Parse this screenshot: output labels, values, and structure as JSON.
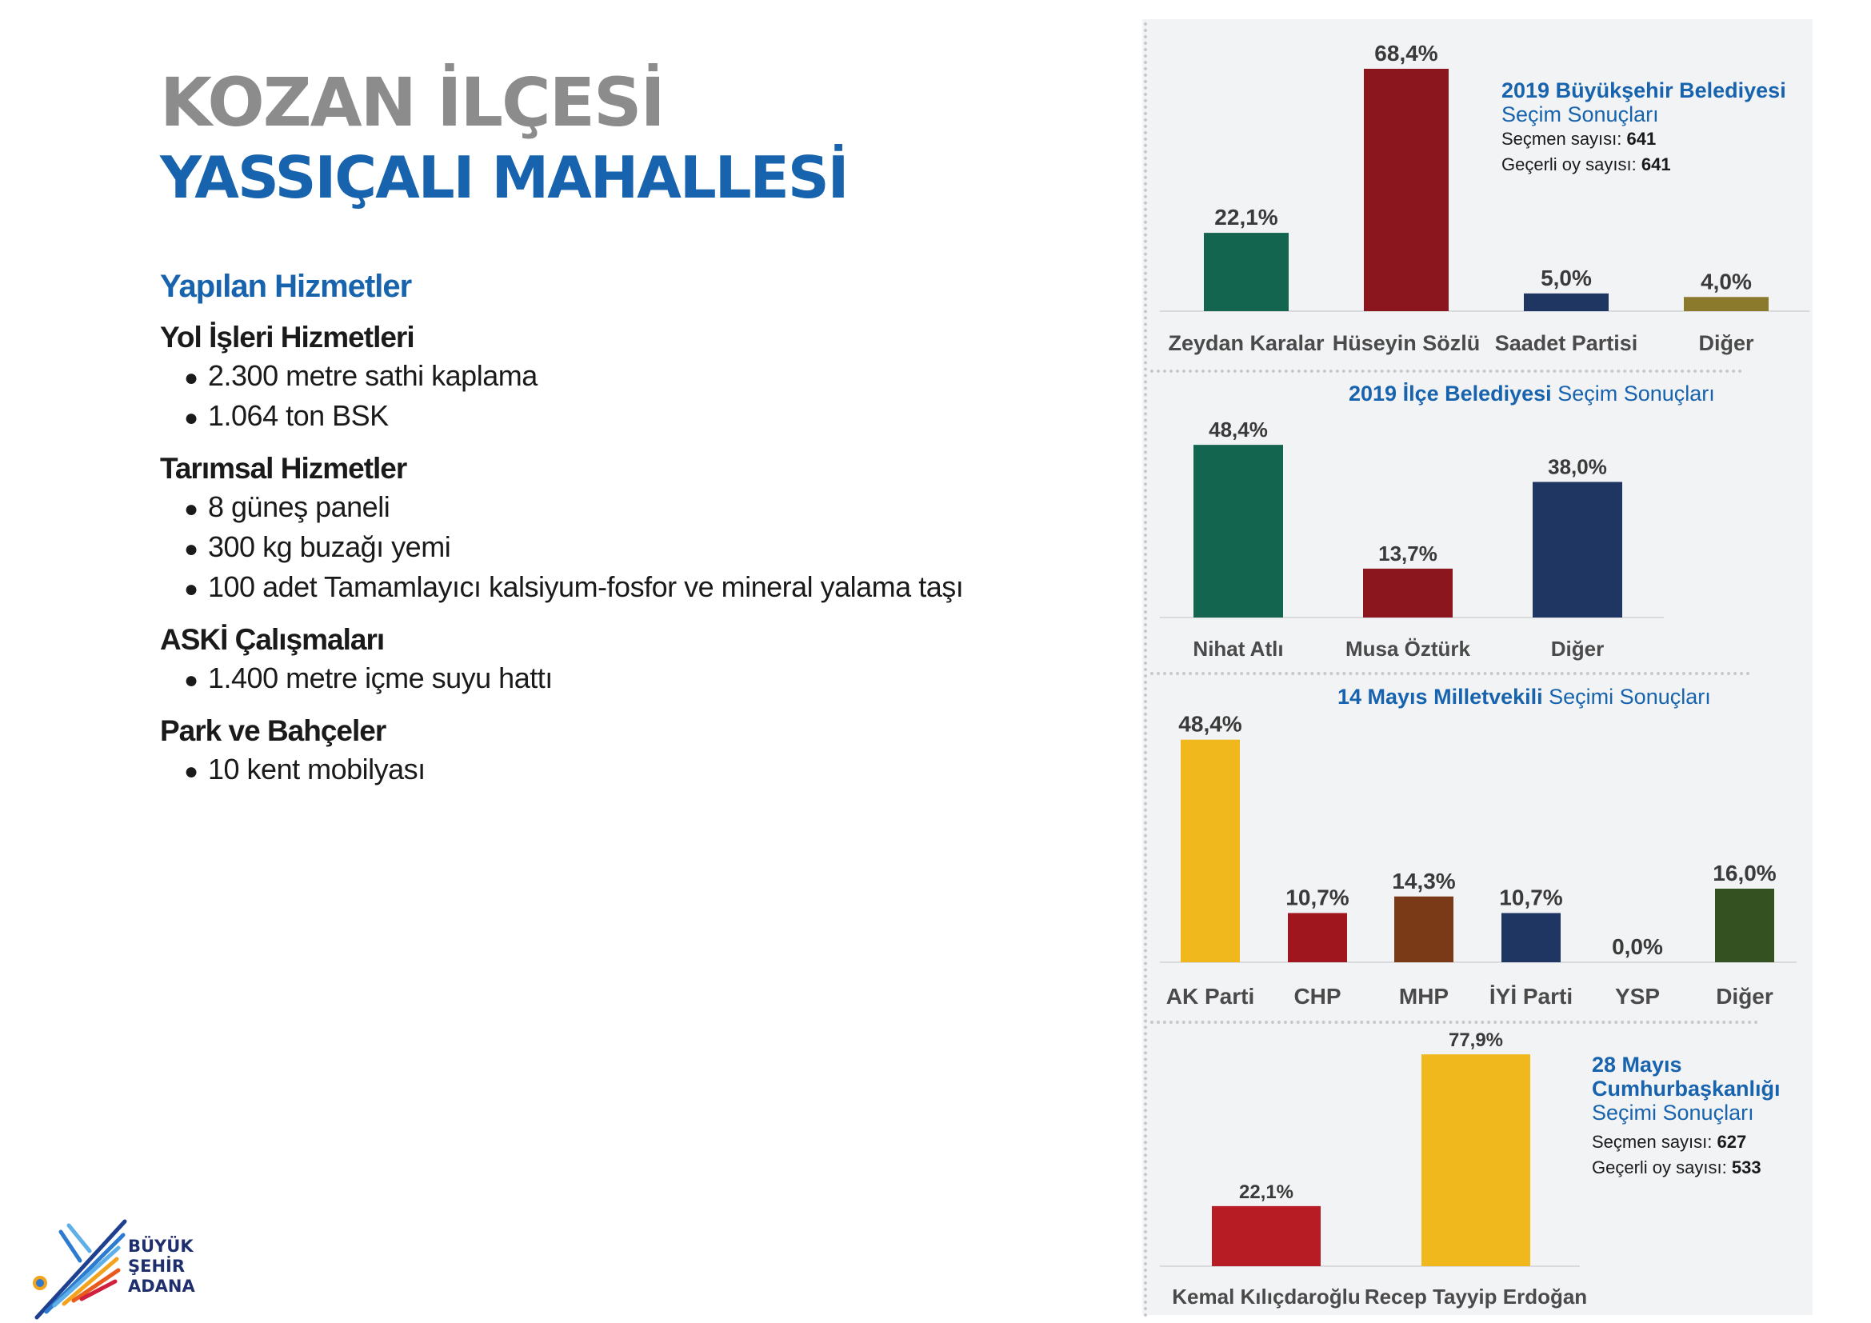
{
  "header": {
    "district": "KOZAN İLÇESİ",
    "neighborhood": "YASSIÇALI MAHALLESİ"
  },
  "services": {
    "heading": "Yapılan Hizmetler",
    "groups": [
      {
        "title": "Yol İşleri Hizmetleri",
        "items": [
          "2.300 metre sathi kaplama",
          "1.064 ton BSK"
        ]
      },
      {
        "title": "Tarımsal Hizmetler",
        "items": [
          "8 güneş paneli",
          "300 kg buzağı yemi",
          "100 adet Tamamlayıcı kalsiyum-fosfor ve mineral yalama taşı"
        ]
      },
      {
        "title": "ASKİ Çalışmaları",
        "items": [
          "1.400 metre içme suyu hattı"
        ]
      },
      {
        "title": "Park ve Bahçeler",
        "items": [
          "10 kent mobilyası"
        ]
      }
    ]
  },
  "logo": {
    "line1": "BÜYÜK",
    "line2": "ŞEHİR",
    "line3": "ADANA"
  },
  "chart_data": [
    {
      "type": "bar",
      "title": "2019 Büyükşehir Belediyesi",
      "subtitle": "Seçim Sonuçları",
      "voters_label": "Seçmen sayısı:",
      "voters": "641",
      "valid_label": "Geçerli oy sayısı:",
      "valid": "641",
      "categories": [
        "Zeydan Karalar",
        "Hüseyin Sözlü",
        "Saadet Partisi",
        "Diğer"
      ],
      "values": [
        22.1,
        68.4,
        5.0,
        4.0
      ],
      "labels": [
        "22,1%",
        "68,4%",
        "5,0%",
        "4,0%"
      ],
      "colors": [
        "#13654f",
        "#8c161d",
        "#1f3663",
        "#8c7a2c"
      ]
    },
    {
      "type": "bar",
      "title": "2019 İlçe Belediyesi",
      "subtitle": "Seçim Sonuçları",
      "categories": [
        "Nihat Atlı",
        "Musa Öztürk",
        "Diğer"
      ],
      "values": [
        48.4,
        13.7,
        38.0
      ],
      "labels": [
        "48,4%",
        "13,7%",
        "38,0%"
      ],
      "colors": [
        "#13654f",
        "#8c161d",
        "#1f3663"
      ]
    },
    {
      "type": "bar",
      "title": "14 Mayıs Milletvekili",
      "subtitle": "Seçimi Sonuçları",
      "categories": [
        "AK Parti",
        "CHP",
        "MHP",
        "İYİ Parti",
        "YSP",
        "Diğer"
      ],
      "values": [
        48.4,
        10.7,
        14.3,
        10.7,
        0.0,
        16.0
      ],
      "labels": [
        "48,4%",
        "10,7%",
        "14,3%",
        "10,7%",
        "0,0%",
        "16,0%"
      ],
      "colors": [
        "#f0b81c",
        "#a0161f",
        "#7a3a17",
        "#1f3663",
        "#7b2a88",
        "#345221"
      ]
    },
    {
      "type": "bar",
      "title": "28 Mayıs Cumhurbaşkanlığı",
      "subtitle": "Seçimi Sonuçları",
      "voters_label": "Seçmen sayısı:",
      "voters": "627",
      "valid_label": "Geçerli oy sayısı:",
      "valid": "533",
      "categories": [
        "Kemal Kılıçdaroğlu",
        "Recep Tayyip Erdoğan"
      ],
      "values": [
        22.1,
        77.9
      ],
      "labels": [
        "22,1%",
        "77,9%"
      ],
      "colors": [
        "#b71c24",
        "#f0b81c"
      ]
    }
  ]
}
